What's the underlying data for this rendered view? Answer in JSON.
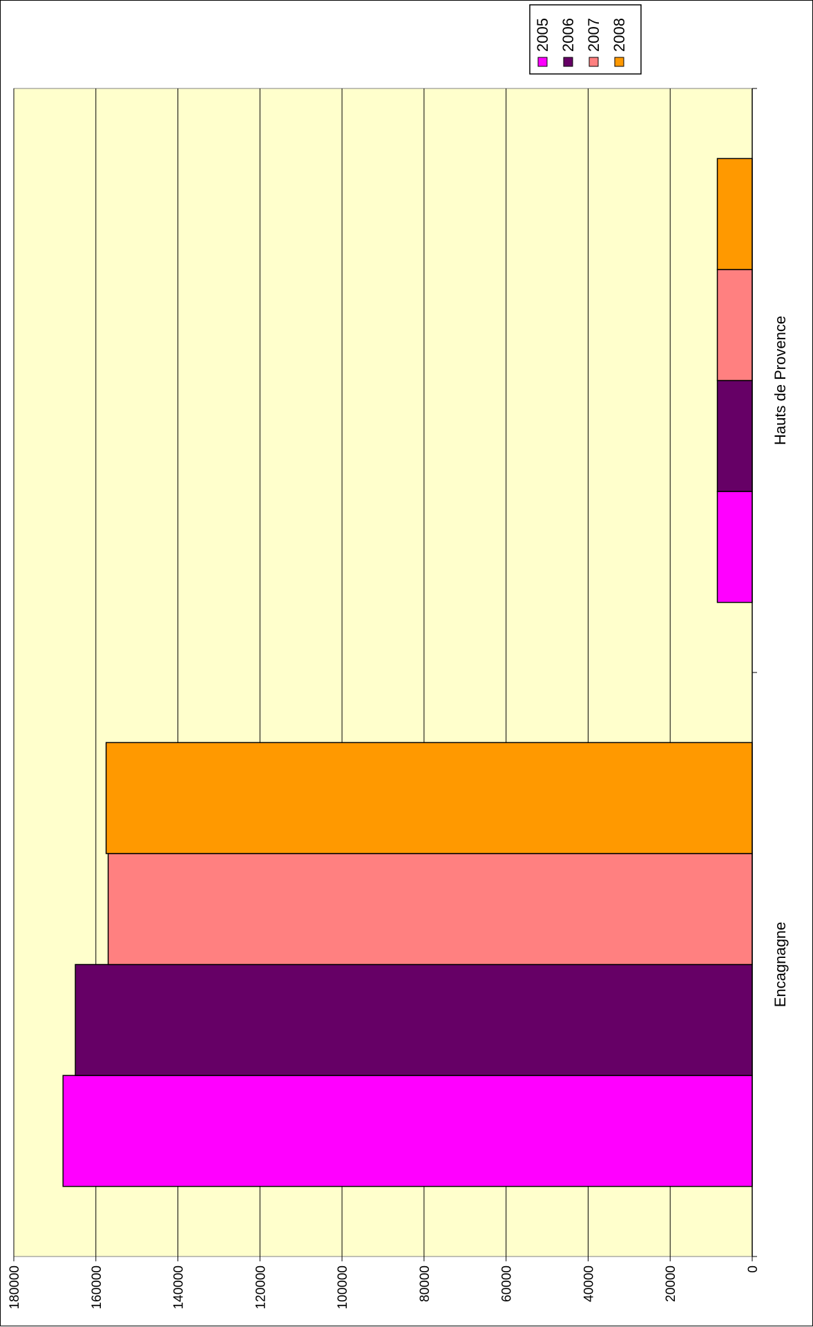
{
  "chart_data": {
    "type": "bar",
    "orientation": "rotated-90-clockwise",
    "categories": [
      "Encagnagne",
      "Hauts de Provence"
    ],
    "series": [
      {
        "name": "2005",
        "color": "#ff00ff",
        "values": [
          168000,
          8500
        ]
      },
      {
        "name": "2006",
        "color": "#660066",
        "values": [
          165000,
          8500
        ]
      },
      {
        "name": "2007",
        "color": "#ff8080",
        "values": [
          157000,
          8500
        ]
      },
      {
        "name": "2008",
        "color": "#ff9900",
        "values": [
          157500,
          8500
        ]
      }
    ],
    "title": "",
    "xlabel": "",
    "ylabel": "",
    "ylim": [
      0,
      180000
    ],
    "ticks": [
      {
        "value": 0,
        "label": "0"
      },
      {
        "value": 20000,
        "label": "20000"
      },
      {
        "value": 40000,
        "label": "40000"
      },
      {
        "value": 60000,
        "label": "60000"
      },
      {
        "value": 80000,
        "label": "80000"
      },
      {
        "value": 100000,
        "label": "100000"
      },
      {
        "value": 120000,
        "label": "120000"
      },
      {
        "value": 140000,
        "label": "140000"
      },
      {
        "value": 160000,
        "label": "160000"
      },
      {
        "value": 180000,
        "label": "180000"
      }
    ],
    "grid": true,
    "legend": "top-right",
    "plot_background": "#ffffcc",
    "gridline_color": "#000000"
  }
}
